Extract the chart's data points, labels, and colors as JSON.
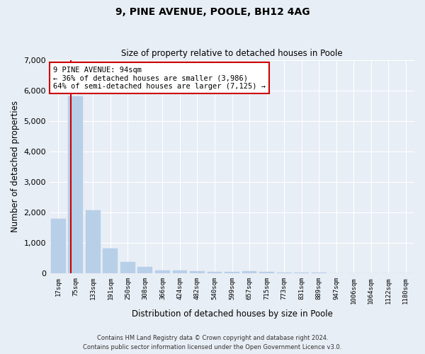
{
  "title1": "9, PINE AVENUE, POOLE, BH12 4AG",
  "title2": "Size of property relative to detached houses in Poole",
  "xlabel": "Distribution of detached houses by size in Poole",
  "ylabel": "Number of detached properties",
  "categories": [
    "17sqm",
    "75sqm",
    "133sqm",
    "191sqm",
    "250sqm",
    "308sqm",
    "366sqm",
    "424sqm",
    "482sqm",
    "540sqm",
    "599sqm",
    "657sqm",
    "715sqm",
    "773sqm",
    "831sqm",
    "889sqm",
    "947sqm",
    "1006sqm",
    "1064sqm",
    "1122sqm",
    "1180sqm"
  ],
  "values": [
    1780,
    5800,
    2060,
    820,
    380,
    215,
    105,
    100,
    75,
    55,
    50,
    80,
    50,
    30,
    25,
    20,
    15,
    15,
    12,
    10,
    10
  ],
  "bar_color": "#b8cfe8",
  "red_line_x": 1.0,
  "annotation_text": "9 PINE AVENUE: 94sqm\n← 36% of detached houses are smaller (3,986)\n64% of semi-detached houses are larger (7,125) →",
  "annotation_box_facecolor": "#ffffff",
  "annotation_box_edgecolor": "#cc0000",
  "ylim": [
    0,
    7000
  ],
  "yticks": [
    0,
    1000,
    2000,
    3000,
    4000,
    5000,
    6000,
    7000
  ],
  "background_color": "#e8eef5",
  "plot_bg_color": "#e8eef5",
  "grid_color": "#ffffff",
  "footer_line1": "Contains HM Land Registry data © Crown copyright and database right 2024.",
  "footer_line2": "Contains public sector information licensed under the Open Government Licence v3.0."
}
